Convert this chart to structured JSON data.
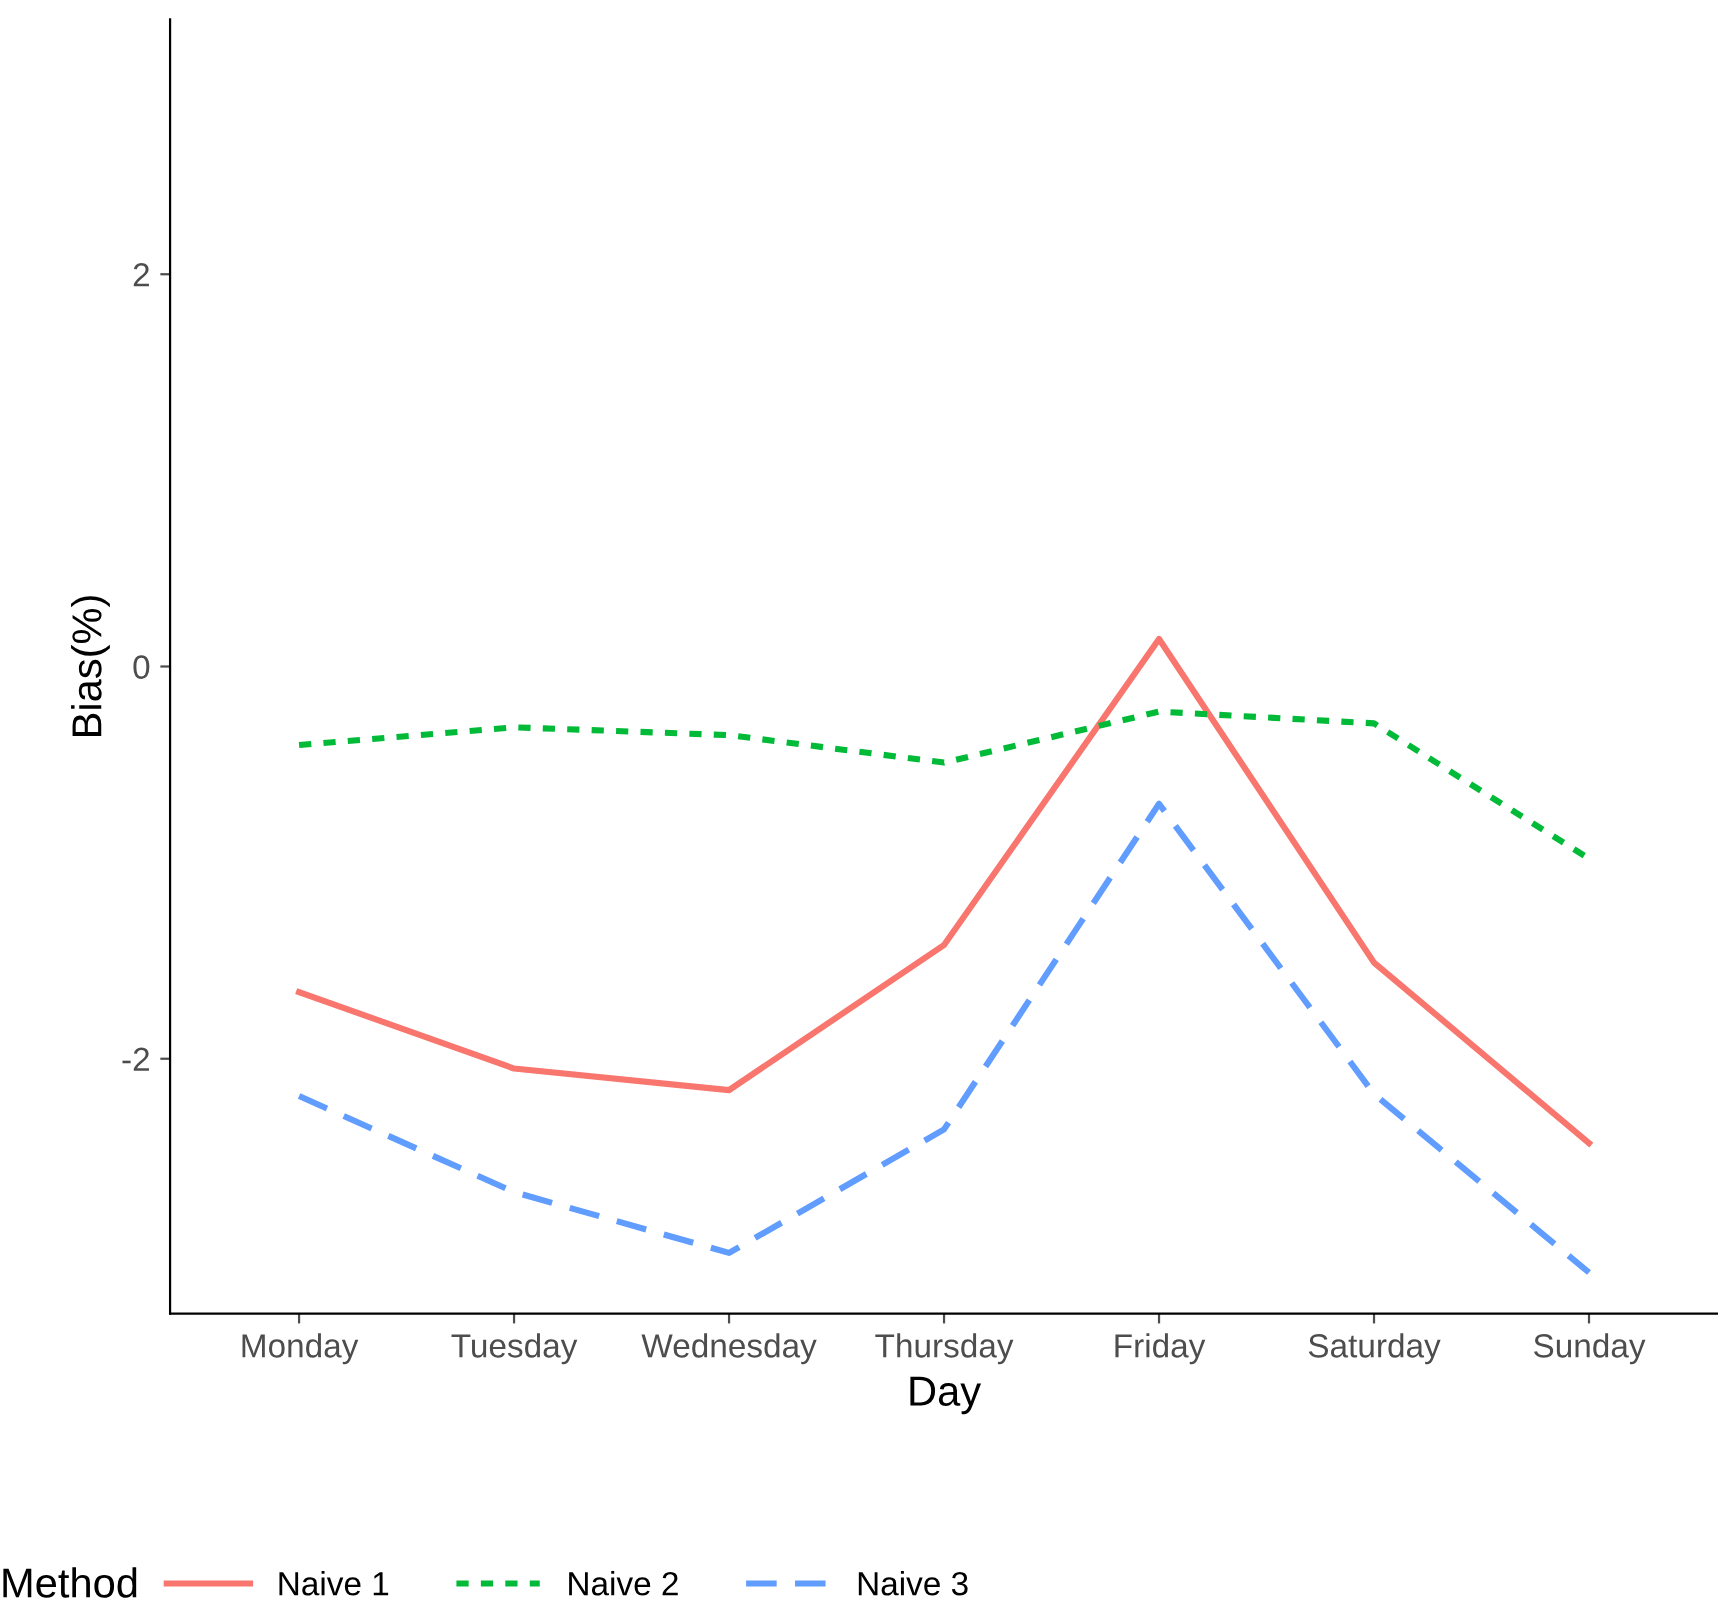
{
  "chart_data": {
    "type": "line",
    "xlabel": "Day",
    "ylabel": "Bias(%)",
    "legend_title": "Method",
    "legend": "bottom",
    "grid": false,
    "categories": [
      "Monday",
      "Tuesday",
      "Wednesday",
      "Thursday",
      "Friday",
      "Saturday",
      "Sunday"
    ],
    "ylim": [
      -3.3,
      3.3
    ],
    "yticks": [
      -2,
      0,
      2
    ],
    "series": [
      {
        "name": "Naive 1",
        "color": "#f8766d",
        "line_style": "solid",
        "values": [
          -1.66,
          -2.05,
          -2.16,
          -1.42,
          0.14,
          -1.51,
          -2.43
        ]
      },
      {
        "name": "Naive 2",
        "color": "#00ba38",
        "line_style": "dotted",
        "values": [
          -0.4,
          -0.31,
          -0.35,
          -0.49,
          -0.23,
          -0.29,
          -0.98
        ]
      },
      {
        "name": "Naive 3",
        "color": "#619cff",
        "line_style": "dashed",
        "values": [
          -2.19,
          -2.68,
          -2.99,
          -2.36,
          -0.7,
          -2.18,
          -3.09
        ]
      }
    ]
  }
}
